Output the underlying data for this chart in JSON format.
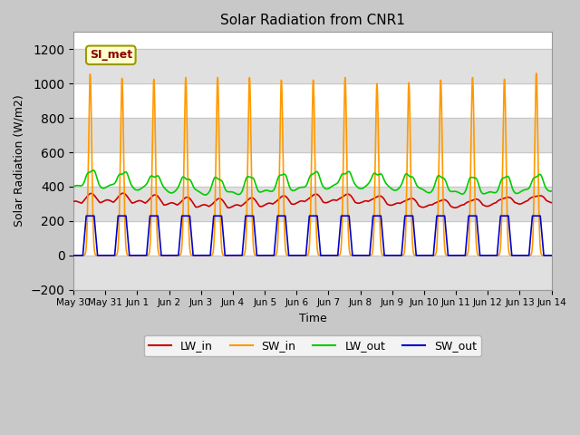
{
  "title": "Solar Radiation from CNR1",
  "xlabel": "Time",
  "ylabel": "Solar Radiation (W/m2)",
  "ylim": [
    -200,
    1300
  ],
  "yticks": [
    -200,
    0,
    200,
    400,
    600,
    800,
    1000,
    1200
  ],
  "xlim_days": [
    0,
    15
  ],
  "annotation_text": "SI_met",
  "annotation_bg": "#ffffcc",
  "annotation_border": "#999900",
  "annotation_text_color": "#8b0000",
  "fig_bg": "#c8c8c8",
  "plot_bg": "#ffffff",
  "band_color": "#e0e0e0",
  "grid_color": "#c8c8c8",
  "lines": {
    "LW_in": {
      "color": "#cc0000",
      "lw": 1.2
    },
    "SW_in": {
      "color": "#ff9900",
      "lw": 1.2
    },
    "LW_out": {
      "color": "#00cc00",
      "lw": 1.2
    },
    "SW_out": {
      "color": "#0000cc",
      "lw": 1.2
    }
  },
  "tick_labels": [
    "May 30",
    "May 31",
    "Jun 1",
    "Jun 2",
    "Jun 3",
    "Jun 4",
    "Jun 5",
    "Jun 6",
    "Jun 7",
    "Jun 8",
    "Jun 9",
    "Jun 10",
    "Jun 11",
    "Jun 12",
    "Jun 13",
    "Jun 14"
  ],
  "tick_positions": [
    0,
    1,
    2,
    3,
    4,
    5,
    6,
    7,
    8,
    9,
    10,
    11,
    12,
    13,
    14,
    15
  ],
  "SW_in_peaks": [
    1055,
    1030,
    1025,
    1035,
    1035,
    1035,
    1020,
    1020,
    1035,
    1000,
    1005,
    1020,
    1035,
    1025,
    1060
  ],
  "SW_out_peak": 230,
  "LW_in_base": 300,
  "LW_in_day_amp": 50,
  "LW_out_base": 395,
  "LW_out_day_amp": 110
}
